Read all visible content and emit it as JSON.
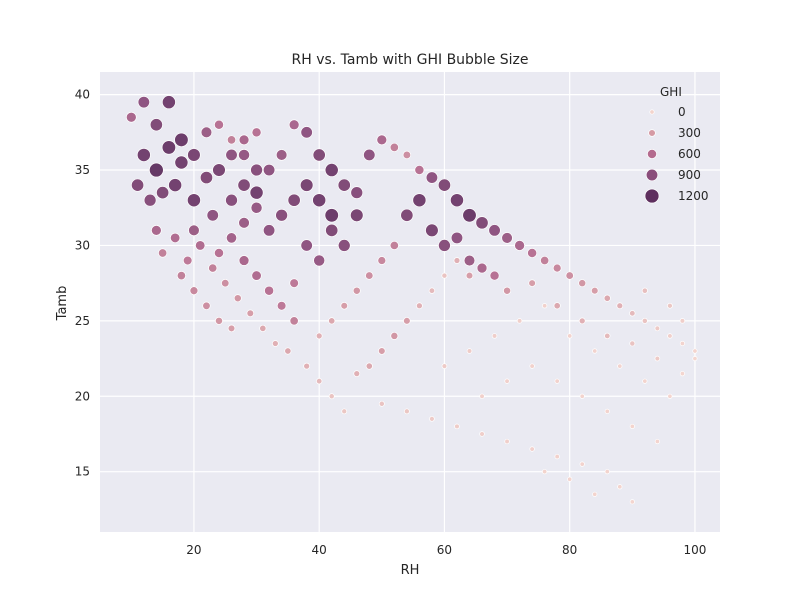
{
  "chart_data": {
    "type": "scatter",
    "title": "RH vs. Tamb with GHI Bubble Size",
    "xlabel": "RH",
    "ylabel": "Tamb",
    "xlim": [
      5,
      104
    ],
    "ylim": [
      11,
      41.5
    ],
    "xticks": [
      20,
      40,
      60,
      80,
      100
    ],
    "yticks": [
      15,
      20,
      25,
      30,
      35,
      40
    ],
    "grid": true,
    "background_color": "#eaeaf2",
    "legend": {
      "title": "GHI",
      "placement": "top-right",
      "entries": [
        {
          "label": "0",
          "value": 0,
          "color": "#f3d4cc"
        },
        {
          "label": "300",
          "value": 300,
          "color": "#d59aa4"
        },
        {
          "label": "600",
          "value": 600,
          "color": "#b46b8e"
        },
        {
          "label": "900",
          "value": 900,
          "color": "#8a4d7b"
        },
        {
          "label": "1200",
          "value": 1200,
          "color": "#5e2f5e"
        }
      ]
    },
    "size_by": "GHI",
    "color_by": "GHI",
    "series": [
      {
        "points": [
          [
            10,
            38.5,
            700
          ],
          [
            12,
            39.5,
            900
          ],
          [
            14,
            38,
            1000
          ],
          [
            16,
            39.5,
            1100
          ],
          [
            18,
            37,
            1150
          ],
          [
            12,
            36,
            1100
          ],
          [
            14,
            35,
            1200
          ],
          [
            16,
            36.5,
            1150
          ],
          [
            18,
            35.5,
            1100
          ],
          [
            20,
            36,
            1050
          ],
          [
            11,
            34,
            1000
          ],
          [
            13,
            33,
            950
          ],
          [
            15,
            33.5,
            1000
          ],
          [
            17,
            34,
            1100
          ],
          [
            20,
            33,
            1100
          ],
          [
            22,
            34.5,
            1000
          ],
          [
            24,
            35,
            1050
          ],
          [
            26,
            36,
            900
          ],
          [
            28,
            37,
            700
          ],
          [
            30,
            37.5,
            600
          ],
          [
            14,
            31,
            700
          ],
          [
            17,
            30.5,
            650
          ],
          [
            20,
            31,
            800
          ],
          [
            23,
            32,
            900
          ],
          [
            26,
            33,
            950
          ],
          [
            28,
            34,
            1000
          ],
          [
            30,
            33.5,
            1100
          ],
          [
            32,
            35,
            900
          ],
          [
            34,
            36,
            800
          ],
          [
            36,
            38,
            700
          ],
          [
            38,
            37.5,
            900
          ],
          [
            40,
            36,
            1000
          ],
          [
            42,
            35,
            1100
          ],
          [
            44,
            34,
            1000
          ],
          [
            46,
            33.5,
            950
          ],
          [
            48,
            36,
            900
          ],
          [
            50,
            37,
            700
          ],
          [
            52,
            36.5,
            500
          ],
          [
            54,
            36,
            400
          ],
          [
            56,
            35,
            600
          ],
          [
            58,
            34.5,
            900
          ],
          [
            60,
            34,
            1000
          ],
          [
            62,
            33,
            1100
          ],
          [
            64,
            32,
            1150
          ],
          [
            66,
            31.5,
            1000
          ],
          [
            68,
            31,
            900
          ],
          [
            70,
            30.5,
            800
          ],
          [
            72,
            30,
            700
          ],
          [
            74,
            29.5,
            600
          ],
          [
            76,
            29,
            500
          ],
          [
            78,
            28.5,
            450
          ],
          [
            80,
            28,
            400
          ],
          [
            82,
            27.5,
            350
          ],
          [
            84,
            27,
            300
          ],
          [
            86,
            26.5,
            250
          ],
          [
            88,
            26,
            200
          ],
          [
            90,
            25.5,
            150
          ],
          [
            92,
            25,
            100
          ],
          [
            94,
            24.5,
            60
          ],
          [
            96,
            24,
            30
          ],
          [
            98,
            23.5,
            10
          ],
          [
            100,
            23,
            5
          ],
          [
            18,
            28,
            500
          ],
          [
            20,
            27,
            450
          ],
          [
            22,
            26,
            400
          ],
          [
            24,
            25,
            350
          ],
          [
            26,
            24.5,
            300
          ],
          [
            28,
            29,
            700
          ],
          [
            30,
            28,
            650
          ],
          [
            32,
            27,
            600
          ],
          [
            34,
            26,
            550
          ],
          [
            36,
            25,
            500
          ],
          [
            38,
            30,
            900
          ],
          [
            40,
            29,
            850
          ],
          [
            42,
            31,
            1000
          ],
          [
            44,
            30,
            950
          ],
          [
            46,
            32,
            1050
          ],
          [
            35,
            23,
            250
          ],
          [
            38,
            22,
            200
          ],
          [
            40,
            21,
            150
          ],
          [
            42,
            20,
            100
          ],
          [
            44,
            19,
            80
          ],
          [
            46,
            21.5,
            200
          ],
          [
            48,
            22,
            250
          ],
          [
            50,
            23,
            300
          ],
          [
            52,
            24,
            350
          ],
          [
            54,
            25,
            300
          ],
          [
            56,
            26,
            200
          ],
          [
            58,
            27,
            150
          ],
          [
            60,
            28,
            100
          ],
          [
            62,
            29,
            200
          ],
          [
            64,
            28,
            300
          ],
          [
            50,
            19.5,
            100
          ],
          [
            54,
            19,
            80
          ],
          [
            58,
            18.5,
            60
          ],
          [
            62,
            18,
            50
          ],
          [
            66,
            17.5,
            40
          ],
          [
            70,
            17,
            30
          ],
          [
            74,
            16.5,
            25
          ],
          [
            78,
            16,
            20
          ],
          [
            82,
            15.5,
            15
          ],
          [
            86,
            15,
            10
          ],
          [
            88,
            14,
            5
          ],
          [
            90,
            13,
            2
          ],
          [
            84,
            13.5,
            5
          ],
          [
            80,
            14.5,
            8
          ],
          [
            76,
            15,
            12
          ],
          [
            60,
            22,
            60
          ],
          [
            64,
            23,
            50
          ],
          [
            68,
            24,
            40
          ],
          [
            72,
            25,
            30
          ],
          [
            76,
            26,
            20
          ],
          [
            80,
            24,
            15
          ],
          [
            84,
            23,
            10
          ],
          [
            88,
            22,
            8
          ],
          [
            92,
            21,
            5
          ],
          [
            96,
            20,
            3
          ],
          [
            66,
            20,
            30
          ],
          [
            70,
            21,
            25
          ],
          [
            74,
            22,
            20
          ],
          [
            78,
            21,
            15
          ],
          [
            82,
            20,
            10
          ],
          [
            86,
            19,
            8
          ],
          [
            90,
            18,
            5
          ],
          [
            94,
            17,
            3
          ],
          [
            98,
            21.5,
            2
          ],
          [
            100,
            22.5,
            1
          ],
          [
            70,
            27,
            350
          ],
          [
            74,
            27.5,
            300
          ],
          [
            78,
            26,
            250
          ],
          [
            82,
            25,
            200
          ],
          [
            86,
            24,
            150
          ],
          [
            90,
            23.5,
            100
          ],
          [
            94,
            22.5,
            60
          ],
          [
            96,
            26,
            80
          ],
          [
            98,
            25,
            40
          ],
          [
            92,
            27,
            120
          ],
          [
            24,
            29.5,
            600
          ],
          [
            26,
            30.5,
            750
          ],
          [
            28,
            31.5,
            800
          ],
          [
            30,
            32.5,
            850
          ],
          [
            32,
            31,
            900
          ],
          [
            34,
            32,
            950
          ],
          [
            36,
            33,
            1000
          ],
          [
            38,
            34,
            1050
          ],
          [
            40,
            33,
            1100
          ],
          [
            42,
            32,
            1150
          ],
          [
            54,
            32,
            1000
          ],
          [
            56,
            33,
            1100
          ],
          [
            58,
            31,
            1050
          ],
          [
            60,
            30,
            950
          ],
          [
            62,
            30.5,
            900
          ],
          [
            64,
            29,
            800
          ],
          [
            66,
            28.5,
            700
          ],
          [
            68,
            28,
            600
          ],
          [
            52,
            30,
            500
          ],
          [
            50,
            29,
            450
          ],
          [
            48,
            28,
            400
          ],
          [
            46,
            27,
            350
          ],
          [
            44,
            26,
            300
          ],
          [
            42,
            25,
            250
          ],
          [
            40,
            24,
            200
          ],
          [
            22,
            37.5,
            800
          ],
          [
            24,
            38,
            600
          ],
          [
            26,
            37,
            500
          ],
          [
            28,
            36,
            850
          ],
          [
            30,
            35,
            950
          ],
          [
            15,
            29.5,
            500
          ],
          [
            19,
            29,
            550
          ],
          [
            21,
            30,
            650
          ],
          [
            23,
            28.5,
            500
          ],
          [
            25,
            27.5,
            400
          ],
          [
            27,
            26.5,
            350
          ],
          [
            29,
            25.5,
            300
          ],
          [
            31,
            24.5,
            250
          ],
          [
            33,
            23.5,
            200
          ],
          [
            36,
            27.5,
            550
          ]
        ]
      }
    ]
  }
}
